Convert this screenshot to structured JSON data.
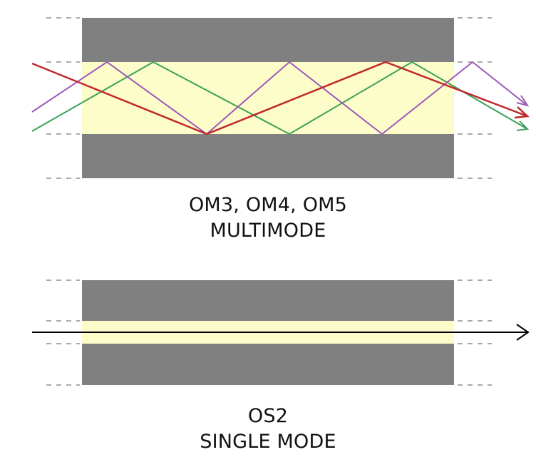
{
  "colors": {
    "cladding": "#808080",
    "core": "#fdfdc9",
    "dash": "#555555",
    "ray_red": "#c0282d",
    "ray_green": "#3aa05a",
    "ray_purple": "#9b59b6",
    "ray_black": "#000000"
  },
  "multimode": {
    "line1": "OM3, OM4, OM5",
    "line2": "MULTIMODE"
  },
  "singlemode": {
    "line1": "OS2",
    "line2": "SINGLE MODE"
  },
  "icons": {
    "multimode_arrows": "arrow-head-icon",
    "singlemode_arrow": "arrow-head-icon"
  }
}
